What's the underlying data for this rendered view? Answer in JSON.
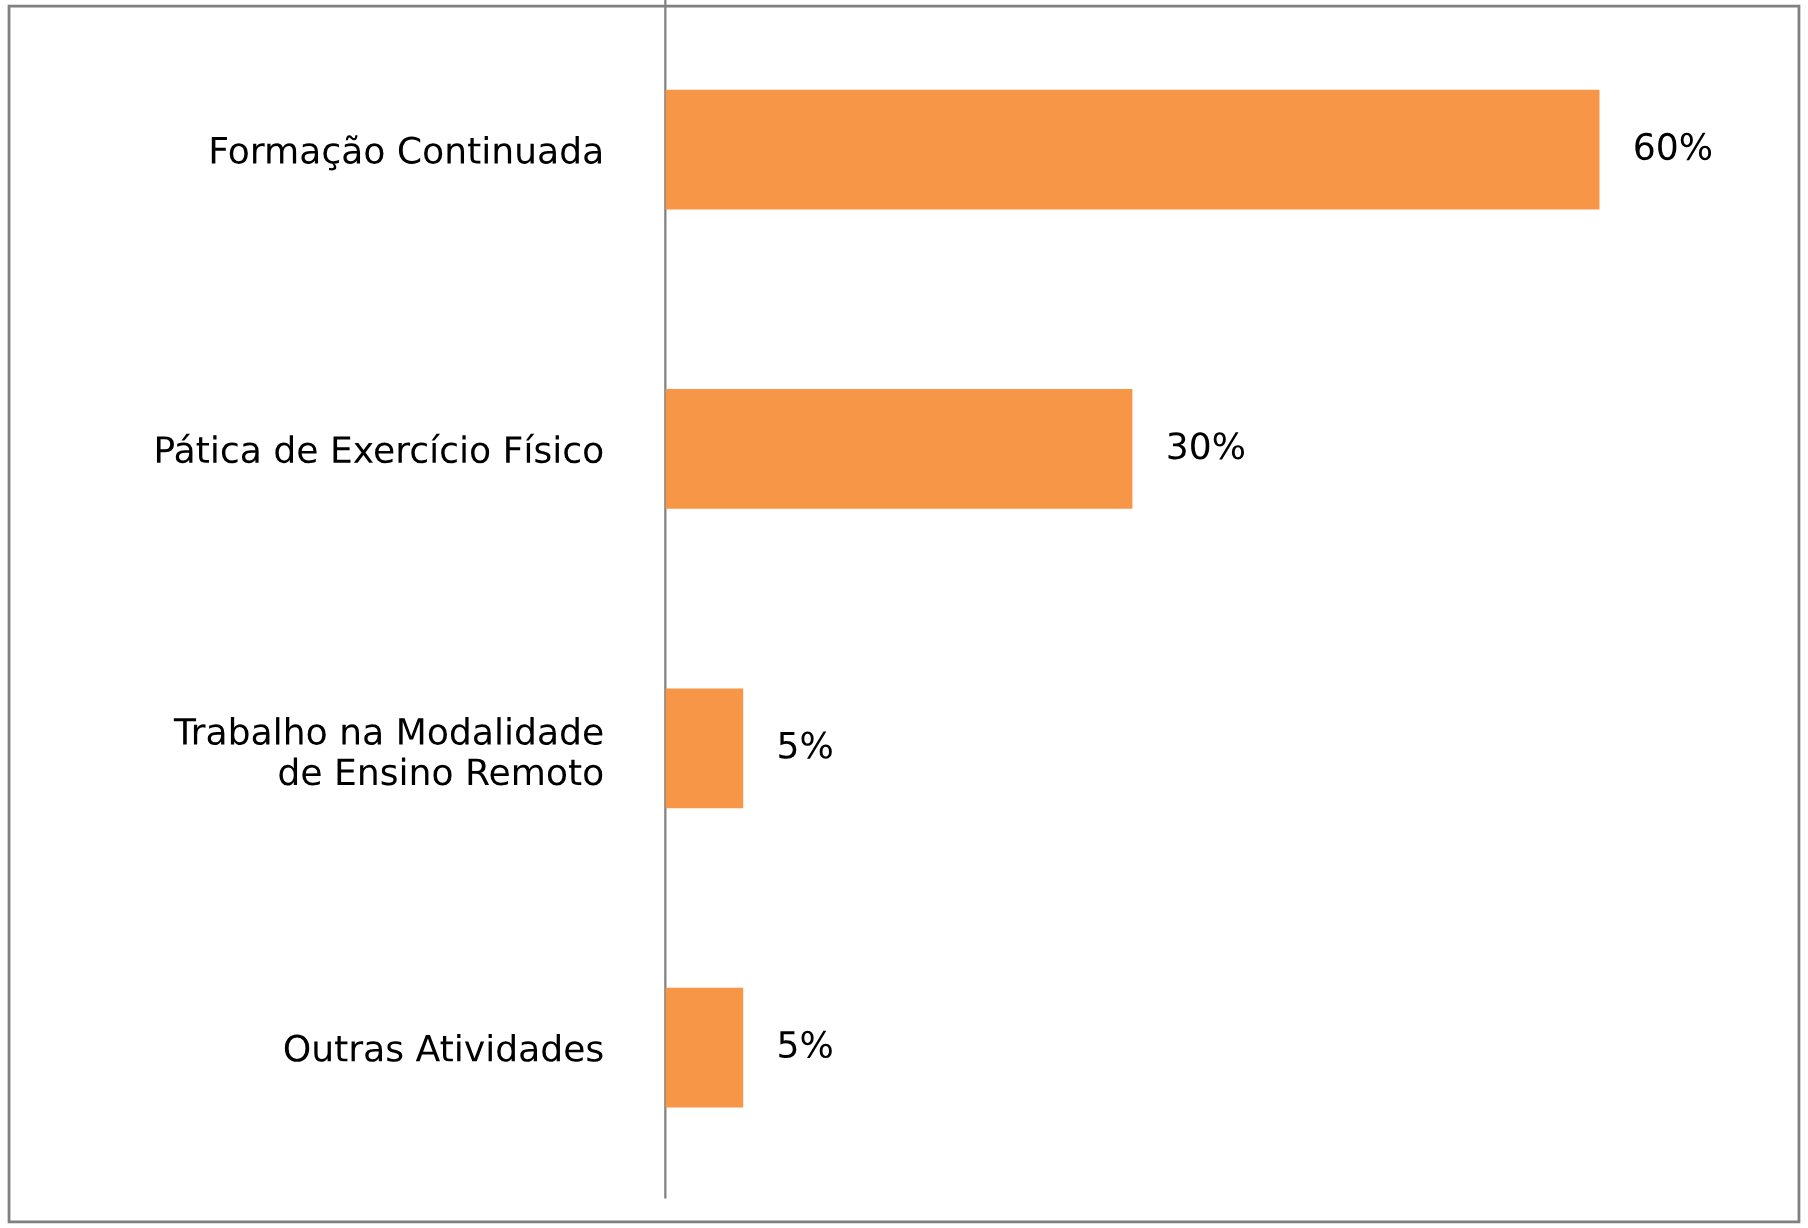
{
  "chart_data": {
    "type": "bar",
    "orientation": "horizontal",
    "categories": [
      "Formação Continuada",
      "Pática de Exercício Físico",
      "Trabalho na Modalidade\nde Ensino Remoto",
      "Outras Atividades"
    ],
    "values": [
      60,
      30,
      5,
      5
    ],
    "value_labels": [
      "60%",
      "30%",
      "5%",
      "5%"
    ],
    "color": "#f79646",
    "tick_labels": "y"
  }
}
